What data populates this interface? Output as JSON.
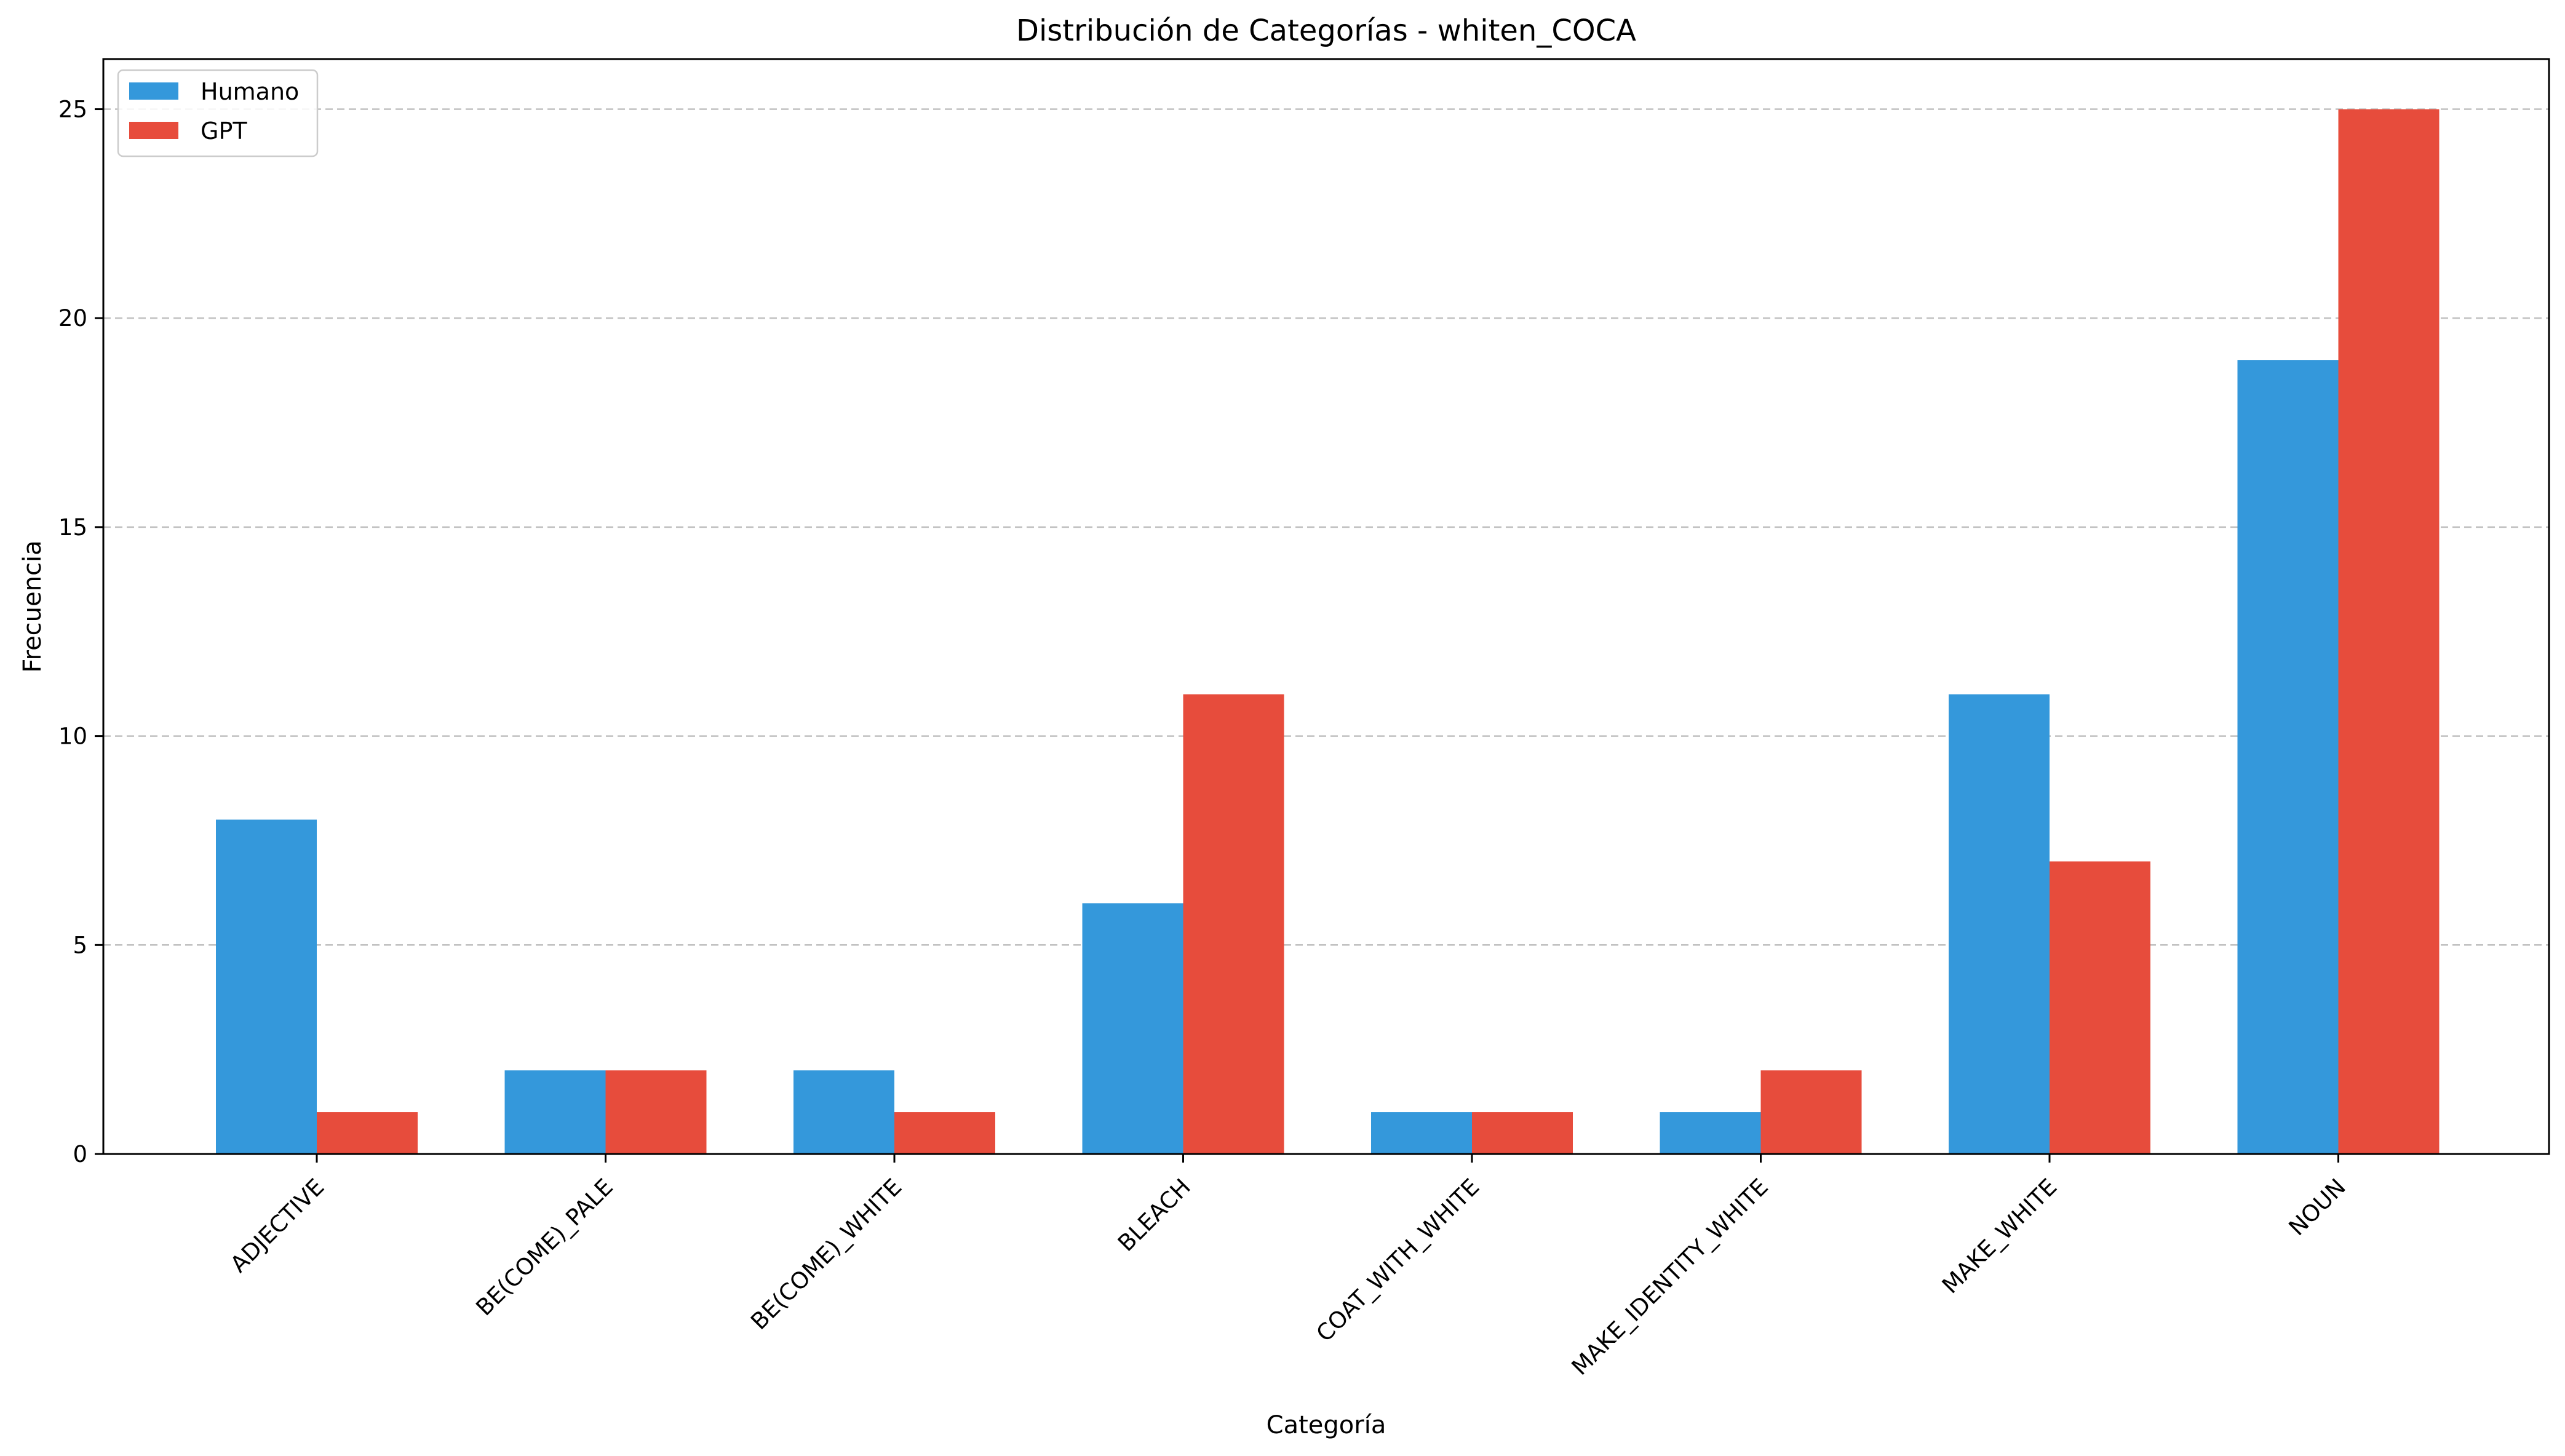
{
  "chart_data": {
    "type": "bar",
    "title": "Distribución de Categorías - whiten_COCA",
    "xlabel": "Categoría",
    "ylabel": "Frecuencia",
    "ylim": [
      0,
      26.2
    ],
    "yticks": [
      0,
      5,
      10,
      15,
      20,
      25
    ],
    "grid": "y-dashed",
    "legend_position": "top-left",
    "categories": [
      "ADJECTIVE",
      "BE(COME)_PALE",
      "BE(COME)_WHITE",
      "BLEACH",
      "COAT_WITH_WHITE",
      "MAKE_IDENTITY_WHITE",
      "MAKE_WHITE",
      "NOUN"
    ],
    "series": [
      {
        "name": "Humano",
        "color": "#3498db",
        "values": [
          8,
          2,
          2,
          6,
          1,
          1,
          11,
          19
        ]
      },
      {
        "name": "GPT",
        "color": "#e74c3c",
        "values": [
          1,
          2,
          1,
          11,
          1,
          2,
          7,
          25
        ]
      }
    ]
  }
}
